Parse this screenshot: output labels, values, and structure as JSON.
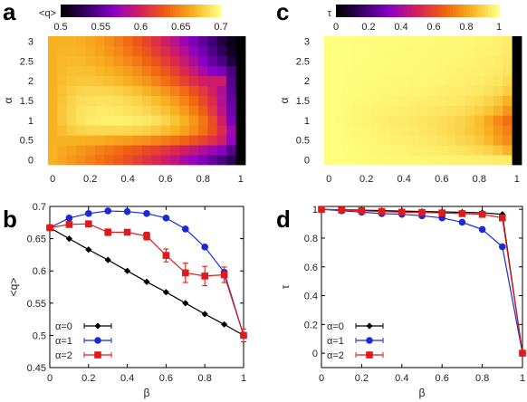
{
  "colors": {
    "black_series": "#000000",
    "blue_series": "#1a2ad8",
    "red_series": "#e01a1a",
    "colormap": [
      "#000000",
      "#3a0070",
      "#8c00c8",
      "#d8205a",
      "#f06010",
      "#f8b020",
      "#ffff80"
    ]
  },
  "chart_data": [
    {
      "panel": "a",
      "type": "heatmap",
      "colorbar": {
        "label": "<q>",
        "range": [
          0.5,
          0.7
        ],
        "ticks": [
          "0.5",
          "0.55",
          "0.6",
          "0.65",
          "0.7"
        ]
      },
      "ylabel": "α",
      "x_ticks": [
        "0",
        "0.2",
        "0.4",
        "0.6",
        "0.8",
        "1"
      ],
      "y_ticks": [
        "0",
        "0.5",
        "1",
        "1.5",
        "2",
        "2.5",
        "3"
      ],
      "beta": [
        0,
        0.05,
        0.1,
        0.15,
        0.2,
        0.25,
        0.3,
        0.35,
        0.4,
        0.45,
        0.5,
        0.55,
        0.6,
        0.65,
        0.7,
        0.75,
        0.8,
        0.85,
        0.9,
        0.95,
        1.0
      ],
      "alpha": [
        0,
        0.25,
        0.5,
        0.75,
        1.0,
        1.25,
        1.5,
        1.75,
        2.0,
        2.25,
        2.5,
        2.75,
        3.0
      ],
      "values": [
        [
          0.667,
          0.662,
          0.657,
          0.652,
          0.647,
          0.641,
          0.636,
          0.63,
          0.624,
          0.617,
          0.61,
          0.603,
          0.596,
          0.588,
          0.579,
          0.57,
          0.56,
          0.55,
          0.54,
          0.525,
          0.5
        ],
        [
          0.667,
          0.664,
          0.66,
          0.656,
          0.652,
          0.647,
          0.643,
          0.638,
          0.633,
          0.628,
          0.622,
          0.617,
          0.611,
          0.604,
          0.597,
          0.59,
          0.582,
          0.574,
          0.565,
          0.545,
          0.5
        ],
        [
          0.667,
          0.668,
          0.668,
          0.667,
          0.666,
          0.665,
          0.663,
          0.661,
          0.659,
          0.656,
          0.653,
          0.649,
          0.645,
          0.64,
          0.634,
          0.627,
          0.619,
          0.609,
          0.597,
          0.57,
          0.5
        ],
        [
          0.667,
          0.673,
          0.678,
          0.681,
          0.683,
          0.684,
          0.684,
          0.684,
          0.683,
          0.682,
          0.68,
          0.677,
          0.673,
          0.668,
          0.661,
          0.652,
          0.64,
          0.625,
          0.605,
          0.575,
          0.5
        ],
        [
          0.667,
          0.676,
          0.683,
          0.688,
          0.691,
          0.693,
          0.694,
          0.694,
          0.693,
          0.692,
          0.69,
          0.687,
          0.682,
          0.675,
          0.667,
          0.656,
          0.642,
          0.623,
          0.597,
          0.56,
          0.5
        ],
        [
          0.667,
          0.676,
          0.683,
          0.688,
          0.69,
          0.691,
          0.691,
          0.69,
          0.688,
          0.686,
          0.683,
          0.679,
          0.674,
          0.667,
          0.658,
          0.646,
          0.631,
          0.612,
          0.588,
          0.556,
          0.5
        ],
        [
          0.667,
          0.675,
          0.681,
          0.685,
          0.687,
          0.688,
          0.687,
          0.686,
          0.684,
          0.681,
          0.677,
          0.672,
          0.666,
          0.658,
          0.648,
          0.636,
          0.622,
          0.605,
          0.584,
          0.552,
          0.5
        ],
        [
          0.667,
          0.674,
          0.679,
          0.682,
          0.683,
          0.683,
          0.682,
          0.68,
          0.677,
          0.673,
          0.668,
          0.662,
          0.655,
          0.647,
          0.637,
          0.625,
          0.612,
          0.598,
          0.582,
          0.548,
          0.5
        ],
        [
          0.667,
          0.672,
          0.675,
          0.676,
          0.676,
          0.675,
          0.673,
          0.67,
          0.666,
          0.661,
          0.655,
          0.648,
          0.64,
          0.63,
          0.619,
          0.607,
          0.598,
          0.595,
          0.594,
          0.545,
          0.5
        ],
        [
          0.667,
          0.671,
          0.673,
          0.673,
          0.672,
          0.67,
          0.667,
          0.663,
          0.658,
          0.652,
          0.645,
          0.637,
          0.628,
          0.617,
          0.605,
          0.592,
          0.578,
          0.566,
          0.56,
          0.54,
          0.5
        ],
        [
          0.667,
          0.67,
          0.671,
          0.67,
          0.668,
          0.665,
          0.661,
          0.656,
          0.65,
          0.643,
          0.635,
          0.626,
          0.616,
          0.605,
          0.593,
          0.58,
          0.566,
          0.552,
          0.54,
          0.52,
          0.5
        ],
        [
          0.667,
          0.669,
          0.669,
          0.668,
          0.665,
          0.661,
          0.656,
          0.65,
          0.643,
          0.635,
          0.626,
          0.616,
          0.606,
          0.595,
          0.583,
          0.57,
          0.556,
          0.542,
          0.528,
          0.512,
          0.5
        ],
        [
          0.667,
          0.668,
          0.668,
          0.666,
          0.663,
          0.659,
          0.653,
          0.646,
          0.638,
          0.629,
          0.619,
          0.608,
          0.597,
          0.586,
          0.574,
          0.561,
          0.548,
          0.534,
          0.52,
          0.508,
          0.5
        ]
      ]
    },
    {
      "panel": "c",
      "type": "heatmap",
      "colorbar": {
        "label": "τ",
        "range": [
          0,
          1
        ],
        "ticks": [
          "0",
          "0.2",
          "0.4",
          "0.6",
          "0.8",
          "1"
        ]
      },
      "ylabel": "α",
      "x_ticks": [
        "0",
        "0.2",
        "0.4",
        "0.6",
        "0.8",
        "1"
      ],
      "y_ticks": [
        "0",
        "0.5",
        "1",
        "1.5",
        "2",
        "2.5",
        "3"
      ],
      "beta": [
        0,
        0.05,
        0.1,
        0.15,
        0.2,
        0.25,
        0.3,
        0.35,
        0.4,
        0.45,
        0.5,
        0.55,
        0.6,
        0.65,
        0.7,
        0.75,
        0.8,
        0.85,
        0.9,
        0.95,
        1.0
      ],
      "alpha": [
        0,
        0.25,
        0.5,
        0.75,
        1.0,
        1.25,
        1.5,
        1.75,
        2.0,
        2.25,
        2.5,
        2.75,
        3.0
      ],
      "values": [
        [
          1.0,
          0.998,
          0.996,
          0.994,
          0.992,
          0.99,
          0.988,
          0.986,
          0.984,
          0.982,
          0.98,
          0.978,
          0.976,
          0.974,
          0.972,
          0.97,
          0.968,
          0.965,
          0.962,
          0.955,
          0.0
        ],
        [
          1.0,
          0.997,
          0.994,
          0.991,
          0.988,
          0.985,
          0.982,
          0.978,
          0.975,
          0.971,
          0.967,
          0.962,
          0.957,
          0.951,
          0.944,
          0.935,
          0.922,
          0.905,
          0.88,
          0.84,
          0.0
        ],
        [
          1.0,
          0.996,
          0.992,
          0.988,
          0.984,
          0.98,
          0.976,
          0.971,
          0.966,
          0.961,
          0.955,
          0.948,
          0.94,
          0.93,
          0.918,
          0.902,
          0.88,
          0.85,
          0.8,
          0.76,
          0.0
        ],
        [
          1.0,
          0.995,
          0.99,
          0.985,
          0.98,
          0.975,
          0.97,
          0.965,
          0.96,
          0.955,
          0.948,
          0.94,
          0.93,
          0.918,
          0.903,
          0.885,
          0.862,
          0.83,
          0.78,
          0.735,
          0.0
        ],
        [
          1.0,
          0.994,
          0.988,
          0.982,
          0.976,
          0.97,
          0.965,
          0.96,
          0.955,
          0.95,
          0.945,
          0.938,
          0.93,
          0.92,
          0.908,
          0.89,
          0.86,
          0.815,
          0.75,
          0.7,
          0.0
        ],
        [
          1.0,
          0.995,
          0.99,
          0.985,
          0.98,
          0.976,
          0.972,
          0.968,
          0.964,
          0.96,
          0.956,
          0.951,
          0.945,
          0.938,
          0.93,
          0.918,
          0.9,
          0.875,
          0.84,
          0.78,
          0.0
        ],
        [
          1.0,
          0.996,
          0.992,
          0.988,
          0.985,
          0.982,
          0.979,
          0.976,
          0.973,
          0.97,
          0.967,
          0.963,
          0.959,
          0.954,
          0.948,
          0.94,
          0.928,
          0.91,
          0.885,
          0.84,
          0.0
        ],
        [
          1.0,
          0.997,
          0.994,
          0.991,
          0.988,
          0.985,
          0.983,
          0.981,
          0.979,
          0.977,
          0.975,
          0.972,
          0.969,
          0.966,
          0.962,
          0.957,
          0.95,
          0.94,
          0.925,
          0.895,
          0.0
        ],
        [
          1.0,
          0.998,
          0.996,
          0.994,
          0.992,
          0.99,
          0.988,
          0.986,
          0.984,
          0.982,
          0.98,
          0.978,
          0.975,
          0.972,
          0.969,
          0.965,
          0.96,
          0.953,
          0.942,
          0.92,
          0.0
        ],
        [
          1.0,
          0.998,
          0.996,
          0.994,
          0.993,
          0.991,
          0.99,
          0.988,
          0.987,
          0.985,
          0.983,
          0.981,
          0.979,
          0.977,
          0.974,
          0.971,
          0.967,
          0.962,
          0.955,
          0.94,
          0.0
        ],
        [
          1.0,
          0.998,
          0.997,
          0.995,
          0.994,
          0.992,
          0.991,
          0.99,
          0.988,
          0.987,
          0.985,
          0.984,
          0.982,
          0.98,
          0.978,
          0.975,
          0.972,
          0.968,
          0.962,
          0.95,
          0.0
        ],
        [
          1.0,
          0.999,
          0.997,
          0.996,
          0.995,
          0.993,
          0.992,
          0.991,
          0.99,
          0.988,
          0.987,
          0.985,
          0.984,
          0.982,
          0.98,
          0.978,
          0.975,
          0.972,
          0.967,
          0.957,
          0.0
        ],
        [
          1.0,
          0.999,
          0.998,
          0.996,
          0.995,
          0.994,
          0.993,
          0.992,
          0.991,
          0.989,
          0.988,
          0.987,
          0.985,
          0.984,
          0.982,
          0.98,
          0.978,
          0.975,
          0.97,
          0.962,
          0.0
        ]
      ]
    },
    {
      "panel": "b",
      "type": "line",
      "xlabel": "β",
      "ylabel": "<q>",
      "xlim": [
        0,
        1
      ],
      "ylim": [
        0.45,
        0.7
      ],
      "x_ticks": [
        "0",
        "0.2",
        "0.4",
        "0.6",
        "0.8",
        "1"
      ],
      "y_ticks": [
        "0.45",
        "0.5",
        "0.55",
        "0.6",
        "0.65",
        "0.7"
      ],
      "legend_position": "bottom-left",
      "x": [
        0,
        0.1,
        0.2,
        0.3,
        0.4,
        0.5,
        0.6,
        0.7,
        0.8,
        0.9,
        1.0
      ],
      "series": [
        {
          "name": "α=0",
          "color": "#000000",
          "marker": "diamond",
          "values": [
            0.667,
            0.65,
            0.633,
            0.617,
            0.6,
            0.583,
            0.567,
            0.55,
            0.533,
            0.517,
            0.5
          ],
          "errors": [
            0,
            0,
            0,
            0,
            0,
            0,
            0,
            0,
            0,
            0,
            0
          ]
        },
        {
          "name": "α=1",
          "color": "#1a2ad8",
          "marker": "circle",
          "values": [
            0.667,
            0.682,
            0.689,
            0.693,
            0.692,
            0.689,
            0.682,
            0.665,
            0.637,
            0.598,
            0.5
          ],
          "errors": [
            0,
            0,
            0,
            0,
            0,
            0,
            0,
            0,
            0,
            0,
            0
          ]
        },
        {
          "name": "α=2",
          "color": "#e01a1a",
          "marker": "square",
          "values": [
            0.667,
            0.672,
            0.673,
            0.66,
            0.66,
            0.654,
            0.624,
            0.597,
            0.592,
            0.594,
            0.5
          ],
          "errors": [
            0,
            0,
            0,
            0.005,
            0.004,
            0.006,
            0.01,
            0.015,
            0.015,
            0.012,
            0.01
          ]
        }
      ]
    },
    {
      "panel": "d",
      "type": "line",
      "xlabel": "β",
      "ylabel": "τ",
      "xlim": [
        0,
        1
      ],
      "ylim": [
        -0.1,
        1.02
      ],
      "x_ticks": [
        "0",
        "0.2",
        "0.4",
        "0.6",
        "0.8",
        "1"
      ],
      "y_ticks": [
        "0",
        "0.2",
        "0.4",
        "0.6",
        "0.8",
        "1"
      ],
      "legend_position": "bottom-left",
      "x": [
        0,
        0.1,
        0.2,
        0.3,
        0.4,
        0.5,
        0.6,
        0.7,
        0.8,
        0.9,
        1.0
      ],
      "series": [
        {
          "name": "α=0",
          "color": "#000000",
          "marker": "diamond",
          "values": [
            1.0,
            0.997,
            0.994,
            0.991,
            0.988,
            0.985,
            0.982,
            0.979,
            0.976,
            0.965,
            0.0
          ]
        },
        {
          "name": "α=1",
          "color": "#1a2ad8",
          "marker": "circle",
          "values": [
            1.0,
            0.99,
            0.98,
            0.97,
            0.965,
            0.955,
            0.94,
            0.91,
            0.86,
            0.74,
            0.0
          ]
        },
        {
          "name": "α=2",
          "color": "#e01a1a",
          "marker": "square",
          "values": [
            1.0,
            0.995,
            0.99,
            0.985,
            0.98,
            0.978,
            0.975,
            0.97,
            0.965,
            0.94,
            0.0
          ]
        }
      ]
    }
  ],
  "panel_labels": [
    "a",
    "b",
    "c",
    "d"
  ]
}
